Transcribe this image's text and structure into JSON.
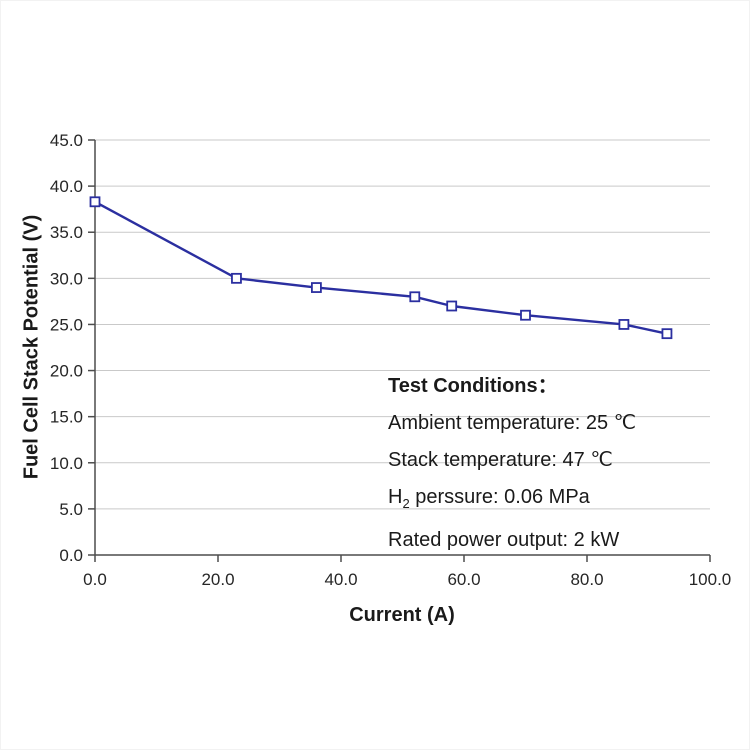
{
  "chart_data": {
    "type": "line",
    "title": "",
    "xlabel": "Current (A)",
    "ylabel": "Fuel Cell Stack Potential (V)",
    "xlim": [
      0,
      100
    ],
    "ylim": [
      0,
      45
    ],
    "xtick_step": 20,
    "ytick_step": 5,
    "tick_decimals": 1,
    "grid": "horizontal",
    "grid_color": "#c9c9c9",
    "axis_color": "#4d4d4d",
    "legend": "none",
    "series": [
      {
        "name": "fuel-cell-polarization-curve",
        "color": "#2b2fa0",
        "marker": "open-square",
        "points": [
          {
            "x": 0,
            "y": 38.3
          },
          {
            "x": 23,
            "y": 30.0
          },
          {
            "x": 36,
            "y": 29.0
          },
          {
            "x": 52,
            "y": 28.0
          },
          {
            "x": 58,
            "y": 27.0
          },
          {
            "x": 70,
            "y": 26.0
          },
          {
            "x": 86,
            "y": 25.0
          },
          {
            "x": 93,
            "y": 24.0
          }
        ]
      }
    ],
    "annotation": {
      "title": "Test Conditions：",
      "line1": "Ambient temperature: 25 ℃",
      "line2": "Stack temperature: 47 ℃",
      "line3_pre": "H",
      "line3_sub": "2",
      "line3_post": " perssure: 0.06 MPa",
      "line4": "Rated power output: 2 kW"
    }
  }
}
